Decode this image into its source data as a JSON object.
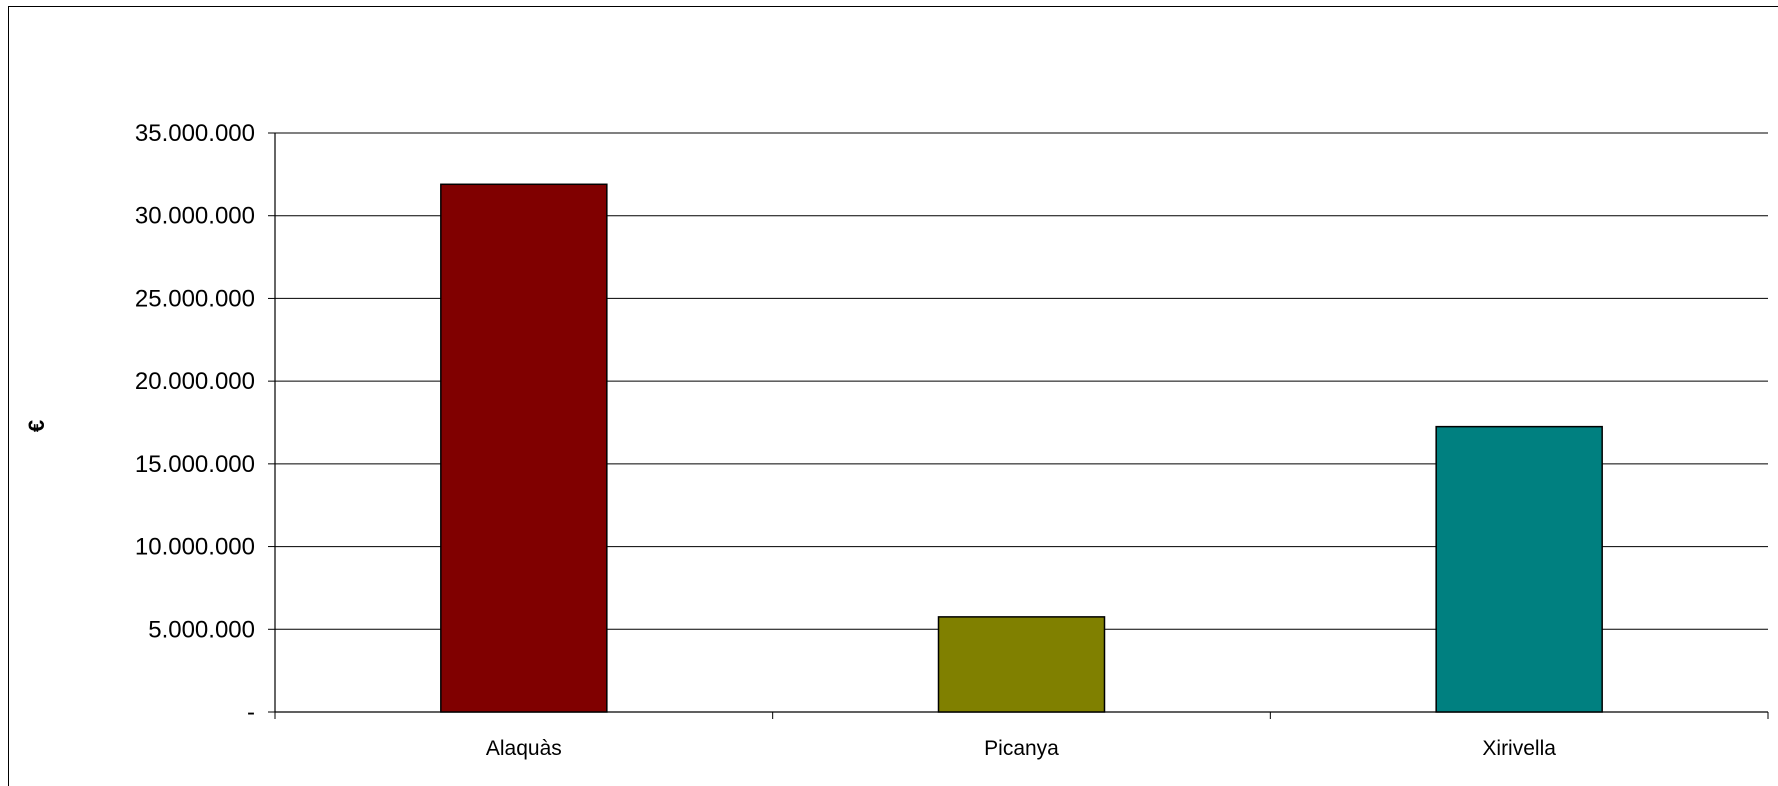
{
  "chart_data": {
    "type": "bar",
    "title": "",
    "xlabel": "",
    "ylabel": "€",
    "categories": [
      "Alaquàs",
      "Picanya",
      "Xirivella"
    ],
    "series": [
      {
        "values": [
          31900000,
          5750000,
          17250000
        ],
        "colors": [
          "#800000",
          "#808000",
          "#008080"
        ]
      }
    ],
    "ylim": [
      0,
      35000000
    ],
    "yticks": [
      0,
      5000000,
      10000000,
      15000000,
      20000000,
      25000000,
      30000000,
      35000000
    ],
    "ytick_labels": [
      "-",
      "5.000.000",
      "10.000.000",
      "15.000.000",
      "20.000.000",
      "25.000.000",
      "30.000.000",
      "35.000.000"
    ],
    "grid": true,
    "legend": "none"
  }
}
